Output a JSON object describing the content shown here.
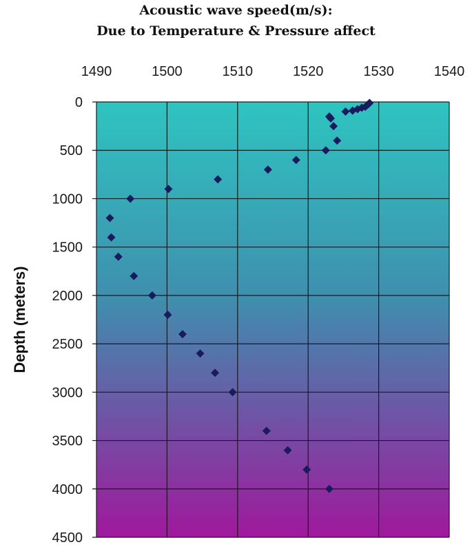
{
  "chart_data": {
    "type": "scatter",
    "title_lines": [
      "Acoustic wave speed(m/s):",
      "Due to Temperature & Pressure affect"
    ],
    "xlabel": "",
    "ylabel": "Depth (meters)",
    "x_axis_position": "top",
    "y_axis_inverted": true,
    "xlim": [
      1490,
      1540
    ],
    "ylim": [
      0,
      4500
    ],
    "x_ticks": [
      "1490",
      "1500",
      "1510",
      "1520",
      "1530",
      "1540"
    ],
    "y_ticks": [
      "0",
      "500",
      "1000",
      "1500",
      "2000",
      "2500",
      "3000",
      "3500",
      "4000",
      "4500"
    ],
    "grid": true,
    "legend": "none",
    "background": {
      "gradient_top": "#2ec4c0",
      "gradient_middle": "#3f8fae",
      "gradient_bottom": "#a0189c"
    },
    "marker_color": "#1a1a5e",
    "marker_shape": "diamond",
    "points": [
      {
        "x": 1528.7,
        "y": 10
      },
      {
        "x": 1528.6,
        "y": 20
      },
      {
        "x": 1528.4,
        "y": 30
      },
      {
        "x": 1528.1,
        "y": 50
      },
      {
        "x": 1527.6,
        "y": 60
      },
      {
        "x": 1527.0,
        "y": 75
      },
      {
        "x": 1526.3,
        "y": 90
      },
      {
        "x": 1525.3,
        "y": 100
      },
      {
        "x": 1523.0,
        "y": 150
      },
      {
        "x": 1523.2,
        "y": 170
      },
      {
        "x": 1523.6,
        "y": 250
      },
      {
        "x": 1524.1,
        "y": 400
      },
      {
        "x": 1522.5,
        "y": 500
      },
      {
        "x": 1518.3,
        "y": 600
      },
      {
        "x": 1514.3,
        "y": 700
      },
      {
        "x": 1507.2,
        "y": 800
      },
      {
        "x": 1500.2,
        "y": 900
      },
      {
        "x": 1494.8,
        "y": 1000
      },
      {
        "x": 1491.9,
        "y": 1200
      },
      {
        "x": 1492.1,
        "y": 1400
      },
      {
        "x": 1493.1,
        "y": 1600
      },
      {
        "x": 1495.3,
        "y": 1800
      },
      {
        "x": 1497.9,
        "y": 2000
      },
      {
        "x": 1500.1,
        "y": 2200
      },
      {
        "x": 1502.2,
        "y": 2400
      },
      {
        "x": 1504.7,
        "y": 2600
      },
      {
        "x": 1506.8,
        "y": 2800
      },
      {
        "x": 1509.3,
        "y": 3000
      },
      {
        "x": 1514.1,
        "y": 3400
      },
      {
        "x": 1517.1,
        "y": 3600
      },
      {
        "x": 1519.8,
        "y": 3800
      },
      {
        "x": 1523.0,
        "y": 4000
      }
    ]
  }
}
